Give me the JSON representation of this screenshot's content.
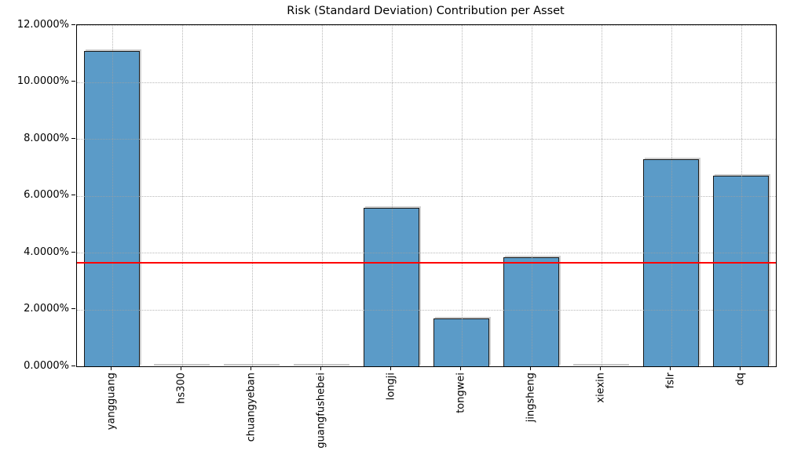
{
  "window": {
    "background": "#ffffff"
  },
  "chart_data": {
    "type": "bar",
    "title": "Risk (Standard Deviation) Contribution per Asset",
    "xlabel": "",
    "ylabel": "",
    "unit": "%",
    "categories": [
      "yangguang",
      "hs300",
      "chuangyeban",
      "guangfushebei",
      "longji",
      "tongwei",
      "jingsheng",
      "xiexin",
      "fslr",
      "dq"
    ],
    "values": [
      11.09,
      0.0,
      0.0,
      0.0,
      5.56,
      1.69,
      3.83,
      0.0,
      7.29,
      6.71
    ],
    "ylim": [
      0,
      12
    ],
    "ytick_values": [
      0,
      2,
      4,
      6,
      8,
      10,
      12
    ],
    "ytick_labels": [
      "0.0000%",
      "2.0000%",
      "4.0000%",
      "6.0000%",
      "8.0000%",
      "10.0000%",
      "12.0000%"
    ],
    "legend": "none",
    "grid": {
      "style": "dotted",
      "axes": "both",
      "color": "#a0a0a0",
      "above_bars": true
    },
    "bar_color": "#5b9bc8",
    "bar_edge_color": "#1b1b1b",
    "threshold_line": {
      "value": 3.63,
      "color": "#ff0000"
    }
  }
}
